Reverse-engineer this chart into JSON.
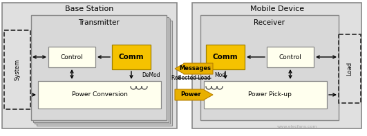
{
  "white": "#ffffff",
  "light_yellow": "#ffffee",
  "yellow": "#f5c200",
  "light_gray": "#e0e0e0",
  "mid_gray": "#c8c8c8",
  "dark_gray": "#888888",
  "arrow_yellow": "#e8b000",
  "arrow_yellow_edge": "#b88000",
  "black": "#000000",
  "title_left": "Base Station",
  "title_right": "Mobile Device",
  "transmitter_label": "Transmitter",
  "receiver_label": "Receiver",
  "control_label_left": "Control",
  "comm_label_left": "Comm",
  "comm_label_right": "Comm",
  "control_label_right": "Control",
  "power_conv_label": "Power Conversion",
  "power_pickup_label": "Power Pick-up",
  "system_label": "System",
  "load_label": "Load",
  "messages_label": "Messages",
  "reflected_label": "Reflected Load",
  "power_label": "Power",
  "demod_label": "DeMod",
  "mod_label": "Mod",
  "watermark": "www.elecfans.com"
}
